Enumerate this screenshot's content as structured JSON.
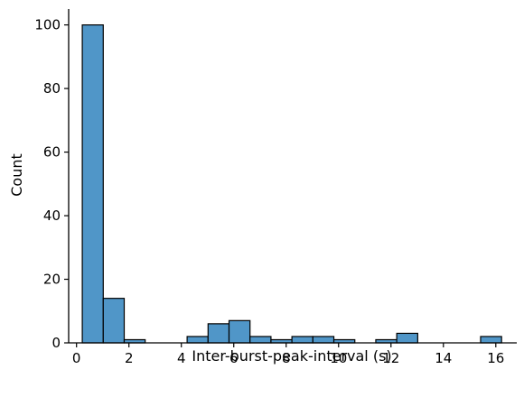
{
  "chart_data": {
    "type": "bar",
    "title": "",
    "xlabel": "Inter-burst-peak-interval (s)",
    "ylabel": "Count",
    "xlim": [
      -0.3,
      16.8
    ],
    "ylim": [
      0,
      105
    ],
    "x_ticks": [
      "0",
      "2",
      "4",
      "6",
      "8",
      "10",
      "12",
      "14",
      "16"
    ],
    "y_ticks": [
      "0",
      "20",
      "40",
      "60",
      "80",
      "100"
    ],
    "bin_edges": [
      0.22,
      1.02,
      1.82,
      2.62,
      3.42,
      4.22,
      5.02,
      5.82,
      6.62,
      7.42,
      8.22,
      9.02,
      9.82,
      10.62,
      11.42,
      12.22,
      13.02,
      13.82,
      14.62,
      15.42,
      16.22
    ],
    "values": [
      100,
      14,
      1,
      0,
      0,
      2,
      6,
      7,
      2,
      1,
      2,
      2,
      1,
      0,
      1,
      3,
      0,
      0,
      0,
      2
    ],
    "bar_color": "#5096c8",
    "edge_color": "#000000",
    "grid": false,
    "legend": "none"
  }
}
